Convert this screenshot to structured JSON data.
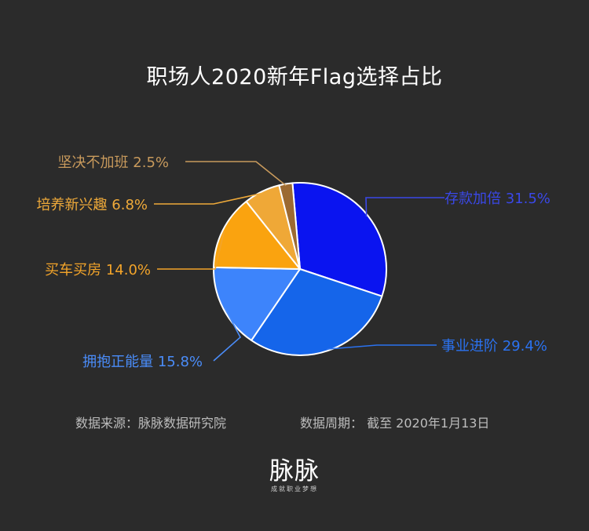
{
  "chart_data": {
    "type": "pie",
    "title": "职场人2020新年Flag选择占比",
    "unit": "%",
    "start_angle_deg": -5,
    "direction": "clockwise",
    "slices": [
      {
        "label": "存款加倍",
        "value": 31.5,
        "display": "存款加倍 31.5%",
        "color": "#0a14f0",
        "label_color": "#3a48e8",
        "label_side": "right"
      },
      {
        "label": "事业进阶",
        "value": 29.4,
        "display": "事业进阶 29.4%",
        "color": "#1565ea",
        "label_color": "#2b72f0",
        "label_side": "right"
      },
      {
        "label": "拥抱正能量",
        "value": 15.8,
        "display": "拥抱正能量 15.8%",
        "color": "#3d84fb",
        "label_color": "#4a8cf8",
        "label_side": "left"
      },
      {
        "label": "买车买房",
        "value": 14.0,
        "display": "买车买房 14.0%",
        "color": "#faa30f",
        "label_color": "#f3a42a",
        "label_side": "left"
      },
      {
        "label": "培养新兴趣",
        "value": 6.8,
        "display": "培养新兴趣 6.8%",
        "color": "#efa837",
        "label_color": "#efaa3a",
        "label_side": "left"
      },
      {
        "label": "坚决不加班",
        "value": 2.5,
        "display": "坚决不加班 2.5%",
        "color": "#9c6a32",
        "label_color": "#c89a5c",
        "label_side": "left"
      }
    ]
  },
  "footer": {
    "source": "数据来源：脉脉数据研究院",
    "period": "数据周期：  截至  2020年1月13日"
  },
  "brand": {
    "logo": "脉脉",
    "slogan": "成就职业梦想"
  }
}
